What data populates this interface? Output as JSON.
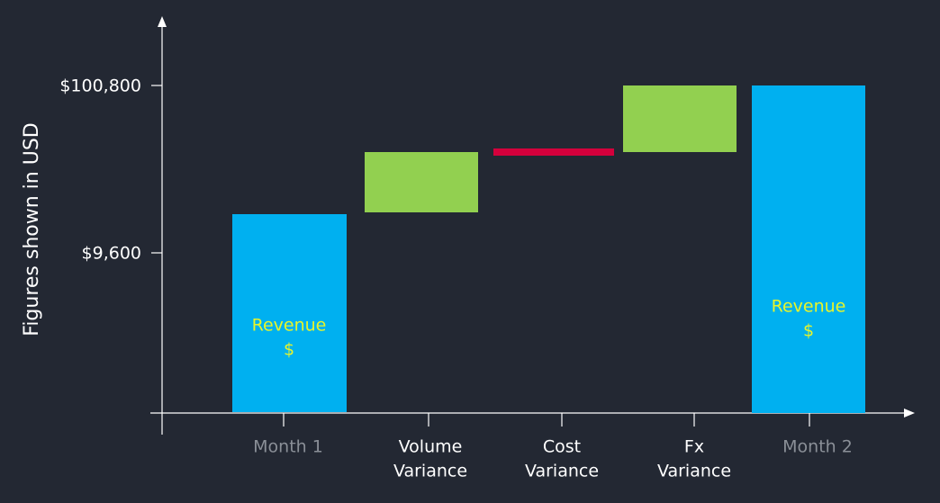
{
  "y_axis": {
    "title": "Figures shown in USD",
    "ticks": [
      "$100,800",
      "$9,600"
    ]
  },
  "categories": [
    {
      "lines": [
        "Month 1"
      ]
    },
    {
      "lines": [
        "Volume",
        "Variance"
      ]
    },
    {
      "lines": [
        "Cost",
        "Variance"
      ]
    },
    {
      "lines": [
        "Fx",
        "Variance"
      ]
    },
    {
      "lines": [
        "Month 2"
      ]
    }
  ],
  "bar_labels": [
    {
      "lines": [
        "Revenue",
        "$"
      ]
    },
    {
      "lines": [
        "Revenue",
        "$"
      ]
    }
  ]
}
